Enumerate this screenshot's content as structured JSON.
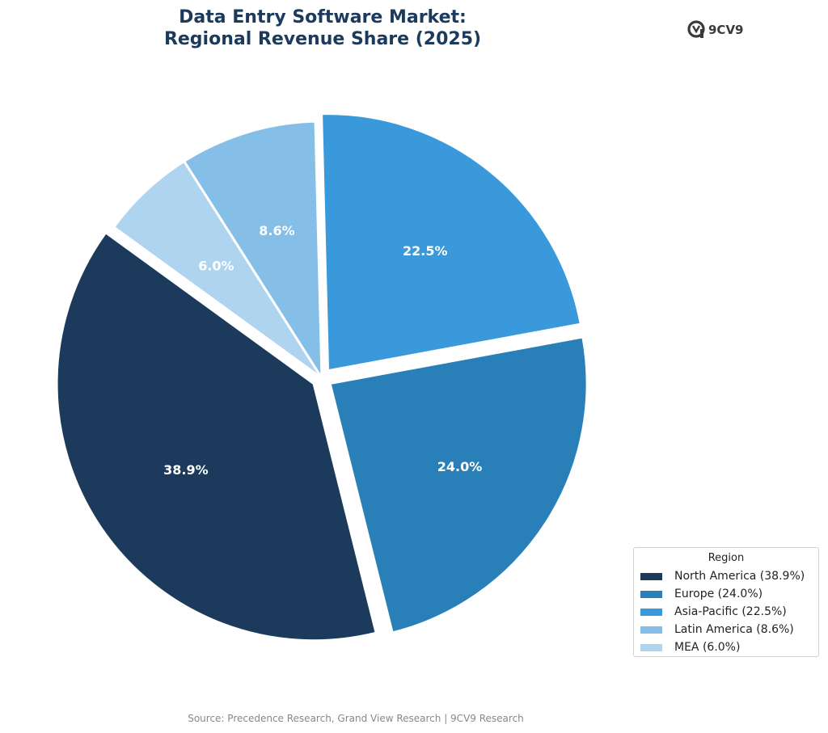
{
  "chart_data": {
    "type": "pie",
    "title": "Data Entry Software Market:\nRegional Revenue Share (2025)",
    "categories": [
      "North America",
      "Europe",
      "Asia-Pacific",
      "Latin America",
      "MEA"
    ],
    "values": [
      38.9,
      24.0,
      22.5,
      8.6,
      6.0
    ],
    "data_labels": [
      "38.9%",
      "24.0%",
      "22.5%",
      "8.6%",
      "6.0%"
    ],
    "colors": [
      "#1b3a5c",
      "#2980b9",
      "#3a99db",
      "#85bfe8",
      "#aed4f0"
    ],
    "label_color": "#ffffff",
    "legend": {
      "title": "Region",
      "placement": "lower-right",
      "entries": [
        "North America (38.9%)",
        "Europe (24.0%)",
        "Asia-Pacific (22.5%)",
        "Latin America (8.6%)",
        "MEA (6.0%)"
      ]
    },
    "exploded_slices": [
      "North America",
      "Europe",
      "Asia-Pacific"
    ]
  },
  "brand": {
    "name": "9CV9",
    "icon": "9cv9-logo-icon"
  },
  "source": "Source: Precedence Research, Grand View Research | 9CV9 Research"
}
